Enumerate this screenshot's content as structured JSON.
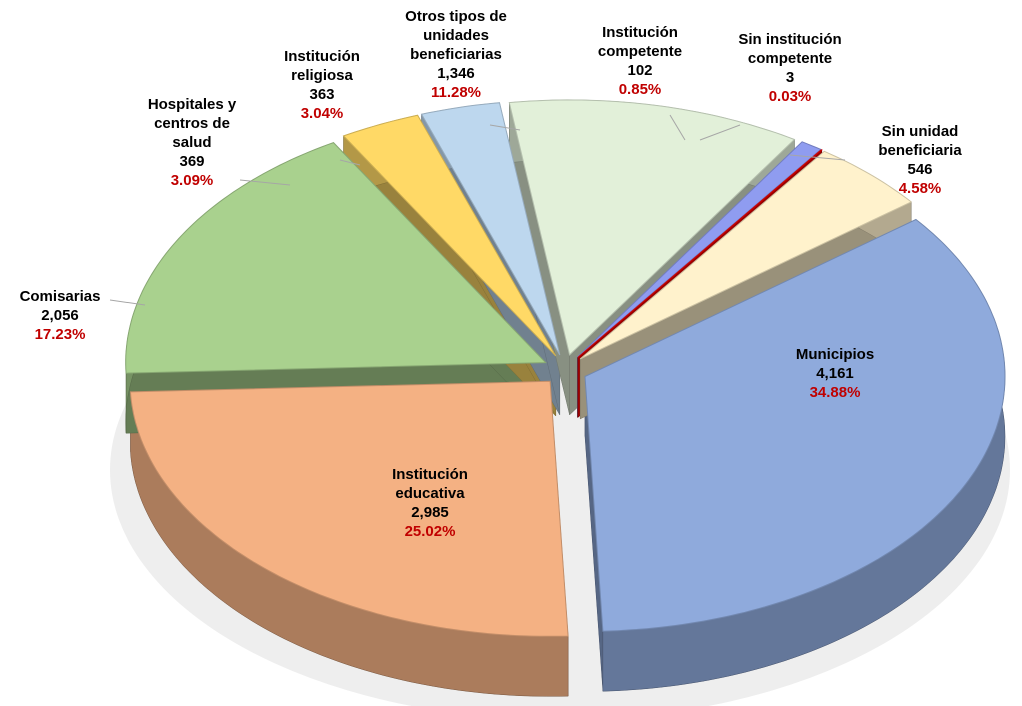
{
  "chart_data": {
    "type": "pie3d",
    "categories": [
      "Municipios",
      "Institución educativa",
      "Comisarias",
      "Hospitales y centros de salud",
      "Institución religiosa",
      "Otros tipos de unidades beneficiarias",
      "Institución competente",
      "Sin institución competente",
      "Sin unidad beneficiaria"
    ],
    "values": [
      4161,
      2985,
      2056,
      369,
      363,
      1346,
      102,
      3,
      546
    ],
    "value_labels": [
      "4,161",
      "2,985",
      "2,056",
      "369",
      "363",
      "1,346",
      "102",
      "3",
      "546"
    ],
    "percent_labels": [
      "34.88%",
      "25.02%",
      "17.23%",
      "3.09%",
      "3.04%",
      "11.28%",
      "0.85%",
      "0.03%",
      "4.58%"
    ],
    "colors": [
      "#8faadc",
      "#f4b183",
      "#a9d18e",
      "#ffd966",
      "#bdd7ee",
      "#e2f0d9",
      "#8f9cf0",
      "#ff0000",
      "#fff2cc"
    ]
  }
}
